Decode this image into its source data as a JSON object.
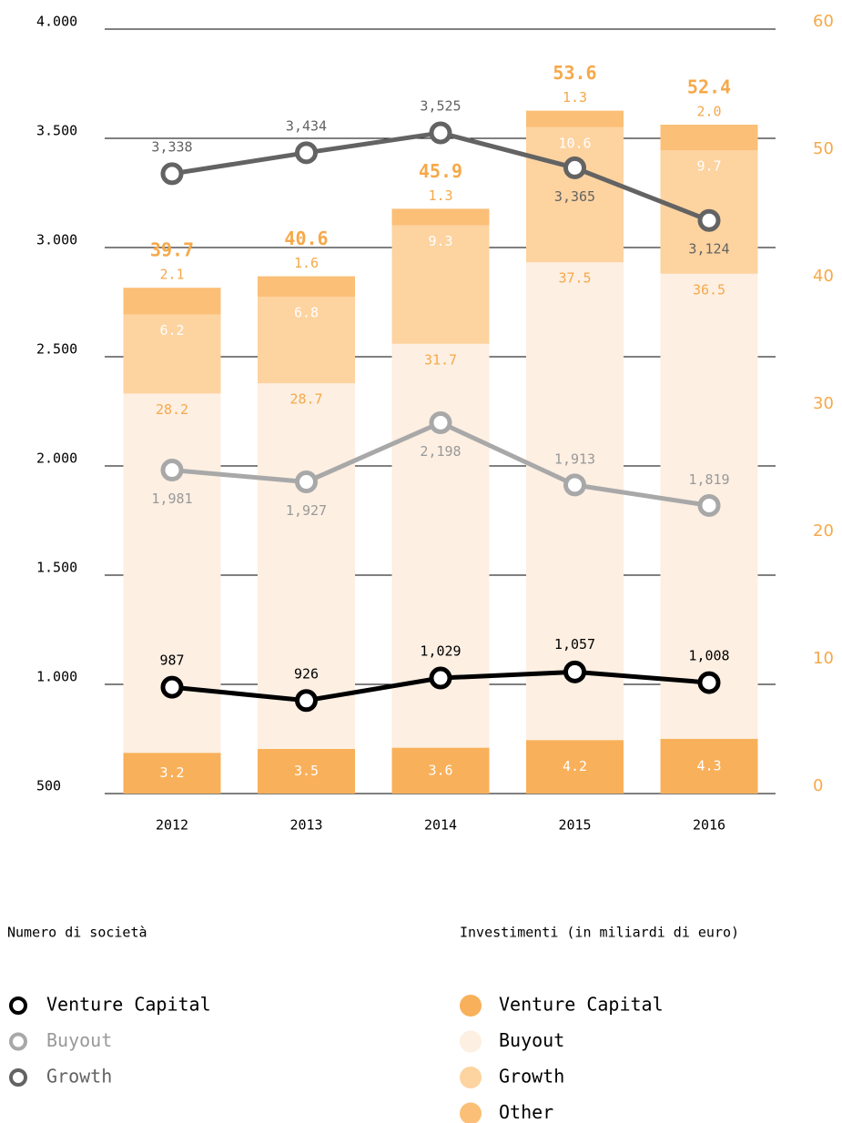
{
  "chart_data": {
    "type": "bar-line",
    "categories": [
      "2012",
      "2013",
      "2014",
      "2015",
      "2016"
    ],
    "ylim": [
      500,
      4000
    ],
    "yticks": [
      500,
      {
        "value": 1000,
        "label": "1.000"
      },
      {
        "value": 1500,
        "label": "1.500"
      },
      {
        "value": 2000,
        "label": "2.000"
      },
      {
        "value": 2500,
        "label": "2.500"
      },
      {
        "value": 3000,
        "label": "3.000"
      },
      {
        "value": 3500,
        "label": "3.500"
      },
      {
        "value": 4000,
        "label": "4.000"
      }
    ],
    "y2lim": [
      0,
      60
    ],
    "y2ticks": [
      0,
      10,
      20,
      30,
      40,
      50,
      60
    ],
    "grid": true,
    "line_legend_title": "Numero di società",
    "bar_legend_title": "Investimenti (in miliardi di euro)",
    "lines": [
      {
        "name": "Venture Capital",
        "color": "#000000",
        "values": [
          987,
          926,
          1029,
          1057,
          1008
        ],
        "value_labels": [
          "987",
          "926",
          "1,029",
          "1,057",
          "1,008"
        ]
      },
      {
        "name": "Buyout",
        "color": "#a8a8a8",
        "values": [
          1981,
          1927,
          2198,
          1913,
          1819
        ],
        "value_labels": [
          "1,981",
          "1,927",
          "2,198",
          "1,913",
          "1,819"
        ]
      },
      {
        "name": "Growth",
        "color": "#636363",
        "values": [
          3338,
          3434,
          3525,
          3365,
          3124
        ],
        "value_labels": [
          "3,338",
          "3,434",
          "3,525",
          "3,365",
          "3,124"
        ]
      }
    ],
    "series": [
      {
        "name": "Venture Capital",
        "color": "#f9b05a",
        "axis": "y2",
        "values": [
          3.2,
          3.5,
          3.6,
          4.2,
          4.3
        ]
      },
      {
        "name": "Buyout",
        "color": "#fdefe2",
        "axis": "y2",
        "values": [
          28.2,
          28.7,
          31.7,
          37.5,
          36.5
        ]
      },
      {
        "name": "Growth",
        "color": "#fdd3a0",
        "axis": "y2",
        "values": [
          6.2,
          6.8,
          9.3,
          10.6,
          9.7
        ]
      },
      {
        "name": "Other",
        "color": "#fbbf77",
        "axis": "y2",
        "values": [
          2.1,
          1.6,
          1.3,
          1.3,
          2.0
        ],
        "value_labels": [
          "2.1",
          "1.6",
          "1.3",
          "1.3",
          "2.0"
        ]
      }
    ],
    "totals": [
      39.7,
      40.6,
      45.9,
      53.6,
      52.4
    ]
  }
}
